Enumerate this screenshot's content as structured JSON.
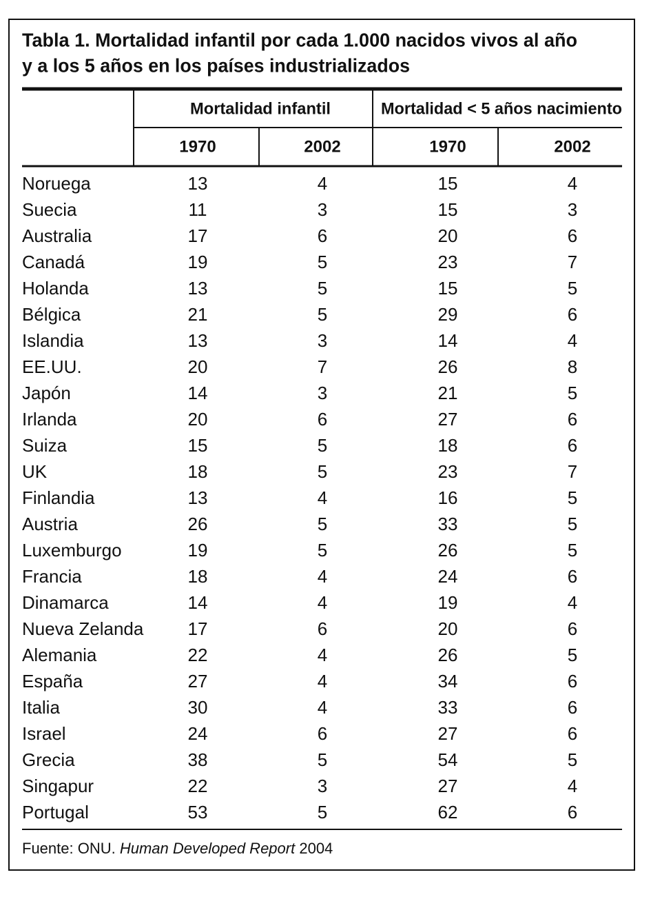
{
  "title": [
    "Tabla 1. Mortalidad infantil por cada 1.000 nacidos vivos al año",
    "y a los 5 años en los países industrializados"
  ],
  "table": {
    "groups": [
      "Mortalidad infantil",
      "Mortalidad < 5 años nacimiento"
    ],
    "subheaders": [
      "1970",
      "2002",
      "1970",
      "2002"
    ],
    "rows": [
      [
        "Noruega",
        13,
        4,
        15,
        4
      ],
      [
        "Suecia",
        11,
        3,
        15,
        3
      ],
      [
        "Australia",
        17,
        6,
        20,
        6
      ],
      [
        "Canadá",
        19,
        5,
        23,
        7
      ],
      [
        "Holanda",
        13,
        5,
        15,
        5
      ],
      [
        "Bélgica",
        21,
        5,
        29,
        6
      ],
      [
        "Islandia",
        13,
        3,
        14,
        4
      ],
      [
        "EE.UU.",
        20,
        7,
        26,
        8
      ],
      [
        "Japón",
        14,
        3,
        21,
        5
      ],
      [
        "Irlanda",
        20,
        6,
        27,
        6
      ],
      [
        "Suiza",
        15,
        5,
        18,
        6
      ],
      [
        "UK",
        18,
        5,
        23,
        7
      ],
      [
        "Finlandia",
        13,
        4,
        16,
        5
      ],
      [
        "Austria",
        26,
        5,
        33,
        5
      ],
      [
        "Luxemburgo",
        19,
        5,
        26,
        5
      ],
      [
        "Francia",
        18,
        4,
        24,
        6
      ],
      [
        "Dinamarca",
        14,
        4,
        19,
        4
      ],
      [
        "Nueva Zelanda",
        17,
        6,
        20,
        6
      ],
      [
        "Alemania",
        22,
        4,
        26,
        5
      ],
      [
        "España",
        27,
        4,
        34,
        6
      ],
      [
        "Italia",
        30,
        4,
        33,
        6
      ],
      [
        "Israel",
        24,
        6,
        27,
        6
      ],
      [
        "Grecia",
        38,
        5,
        54,
        5
      ],
      [
        "Singapur",
        22,
        3,
        27,
        4
      ],
      [
        "Portugal",
        53,
        5,
        62,
        6
      ]
    ]
  },
  "footnote": {
    "source": "Fuente: ONU.",
    "work": "Human Developed Report",
    "year": "2004"
  }
}
